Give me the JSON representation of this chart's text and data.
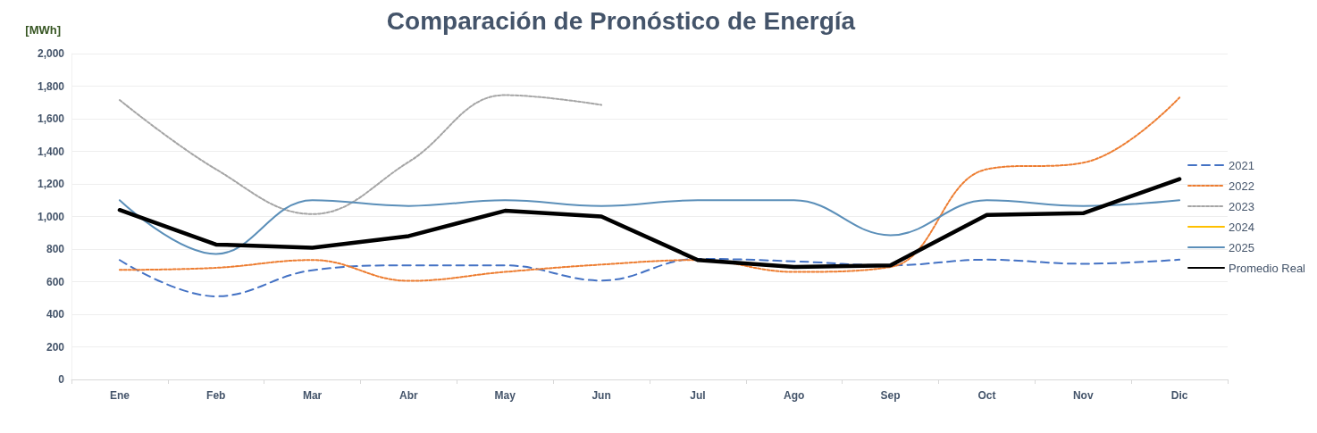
{
  "chart_data": {
    "type": "line",
    "title": "Comparación de Pronóstico de Energía",
    "ylabel": "[MWh]",
    "categories": [
      "Ene",
      "Feb",
      "Mar",
      "Abr",
      "May",
      "Jun",
      "Jul",
      "Ago",
      "Sep",
      "Oct",
      "Nov",
      "Dic"
    ],
    "series": [
      {
        "name": "2021",
        "color": "#4472c4",
        "line_style": "dashed",
        "values": [
          733,
          510,
          670,
          700,
          700,
          607,
          740,
          725,
          700,
          735,
          710,
          735
        ]
      },
      {
        "name": "2022",
        "color": "#ed7d31",
        "line_style": "dotted",
        "values": [
          672,
          685,
          733,
          605,
          660,
          705,
          733,
          660,
          690,
          1290,
          1330,
          1730
        ]
      },
      {
        "name": "2023",
        "color": "#a5a5a5",
        "line_style": "dotted",
        "values": [
          1715,
          1290,
          1015,
          1335,
          1745,
          1685,
          null,
          null,
          null,
          null,
          null,
          null
        ]
      },
      {
        "name": "2024",
        "color": "#ffc000",
        "line_style": "solid",
        "values": [
          null,
          null,
          null,
          null,
          null,
          null,
          null,
          null,
          null,
          null,
          null,
          null
        ]
      },
      {
        "name": "2025",
        "color": "#5b8fb9",
        "line_style": "solid",
        "values": [
          1100,
          770,
          1100,
          1065,
          1100,
          1065,
          1100,
          1100,
          885,
          1100,
          1065,
          1100
        ]
      },
      {
        "name": "Promedio Real",
        "color": "#000000",
        "line_style": "solid",
        "values": [
          1040,
          828,
          808,
          880,
          1035,
          1000,
          733,
          690,
          700,
          1010,
          1020,
          1230
        ]
      }
    ],
    "ylim": [
      0,
      2000
    ],
    "yticks": [
      0,
      200,
      400,
      600,
      800,
      {
        "value": 1000,
        "label": "1,000"
      },
      {
        "value": 1200,
        "label": "1,200"
      },
      {
        "value": 1400,
        "label": "1,400"
      },
      {
        "value": 1600,
        "label": "1,600"
      },
      {
        "value": 1800,
        "label": "1,800"
      },
      {
        "value": 2000,
        "label": "2,000"
      }
    ],
    "grid": "y",
    "legend": "right",
    "marker": "none"
  }
}
